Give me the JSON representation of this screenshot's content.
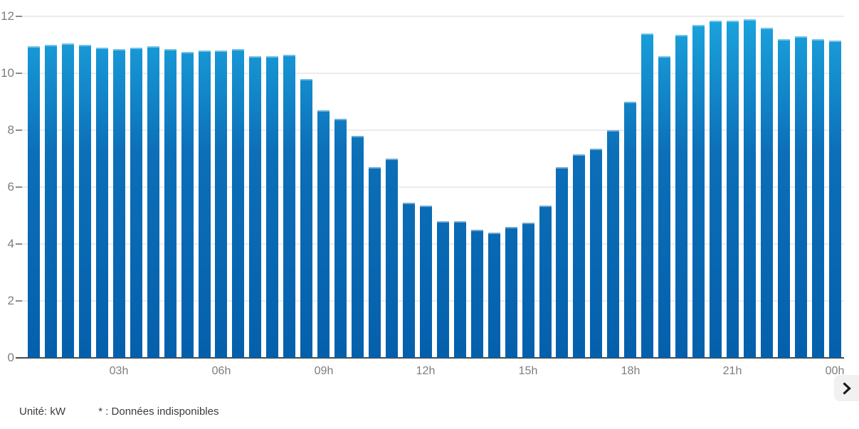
{
  "chart_data": {
    "type": "bar",
    "title": "",
    "xlabel": "",
    "ylabel": "",
    "unit": "kW",
    "ylim": [
      0,
      12
    ],
    "y_ticks": [
      0,
      2,
      4,
      6,
      8,
      10,
      12
    ],
    "grid": true,
    "legend": false,
    "x": [
      "00h30",
      "01h00",
      "01h30",
      "02h00",
      "02h30",
      "03h00",
      "03h30",
      "04h00",
      "04h30",
      "05h00",
      "05h30",
      "06h00",
      "06h30",
      "07h00",
      "07h30",
      "08h00",
      "08h30",
      "09h00",
      "09h30",
      "10h00",
      "10h30",
      "11h00",
      "11h30",
      "12h00",
      "12h30",
      "13h00",
      "13h30",
      "14h00",
      "14h30",
      "15h00",
      "15h30",
      "16h00",
      "16h30",
      "17h00",
      "17h30",
      "18h00",
      "18h30",
      "19h00",
      "19h30",
      "20h00",
      "20h30",
      "21h00",
      "21h30",
      "22h00",
      "22h30",
      "23h00",
      "23h30",
      "00h00"
    ],
    "values": [
      10.95,
      11.0,
      11.05,
      11.0,
      10.9,
      10.85,
      10.9,
      10.95,
      10.85,
      10.75,
      10.8,
      10.8,
      10.85,
      10.6,
      10.6,
      10.65,
      9.8,
      8.7,
      8.4,
      7.8,
      6.7,
      7.0,
      5.45,
      5.35,
      4.8,
      4.8,
      4.5,
      4.4,
      4.6,
      4.75,
      5.35,
      6.7,
      7.15,
      7.35,
      8.0,
      9.0,
      11.4,
      10.6,
      11.35,
      11.7,
      11.85,
      11.85,
      11.9,
      11.6,
      11.2,
      11.3,
      11.2,
      11.15
    ],
    "x_tick_labels": [
      "03h",
      "06h",
      "09h",
      "12h",
      "15h",
      "18h",
      "21h",
      "00h"
    ],
    "x_tick_indices": [
      5,
      11,
      17,
      23,
      29,
      35,
      41,
      47
    ]
  },
  "footer": {
    "unit": "Unité: kW",
    "note": "* : Données indisponibles"
  },
  "nav": {
    "next_icon": "chevron-right"
  },
  "colors": {
    "bar_gradient_top": "#1ba4de",
    "bar_gradient_mid": "#0c6fb8",
    "bar_gradient_bottom": "#0560ac",
    "gridline": "#ececec",
    "axis_line": "#4a4a4a",
    "tick_text": "#7d7d7d",
    "footer_text": "#3c3c3b",
    "button_bg": "#f1f1f1",
    "button_icon": "#1a1a1a"
  }
}
